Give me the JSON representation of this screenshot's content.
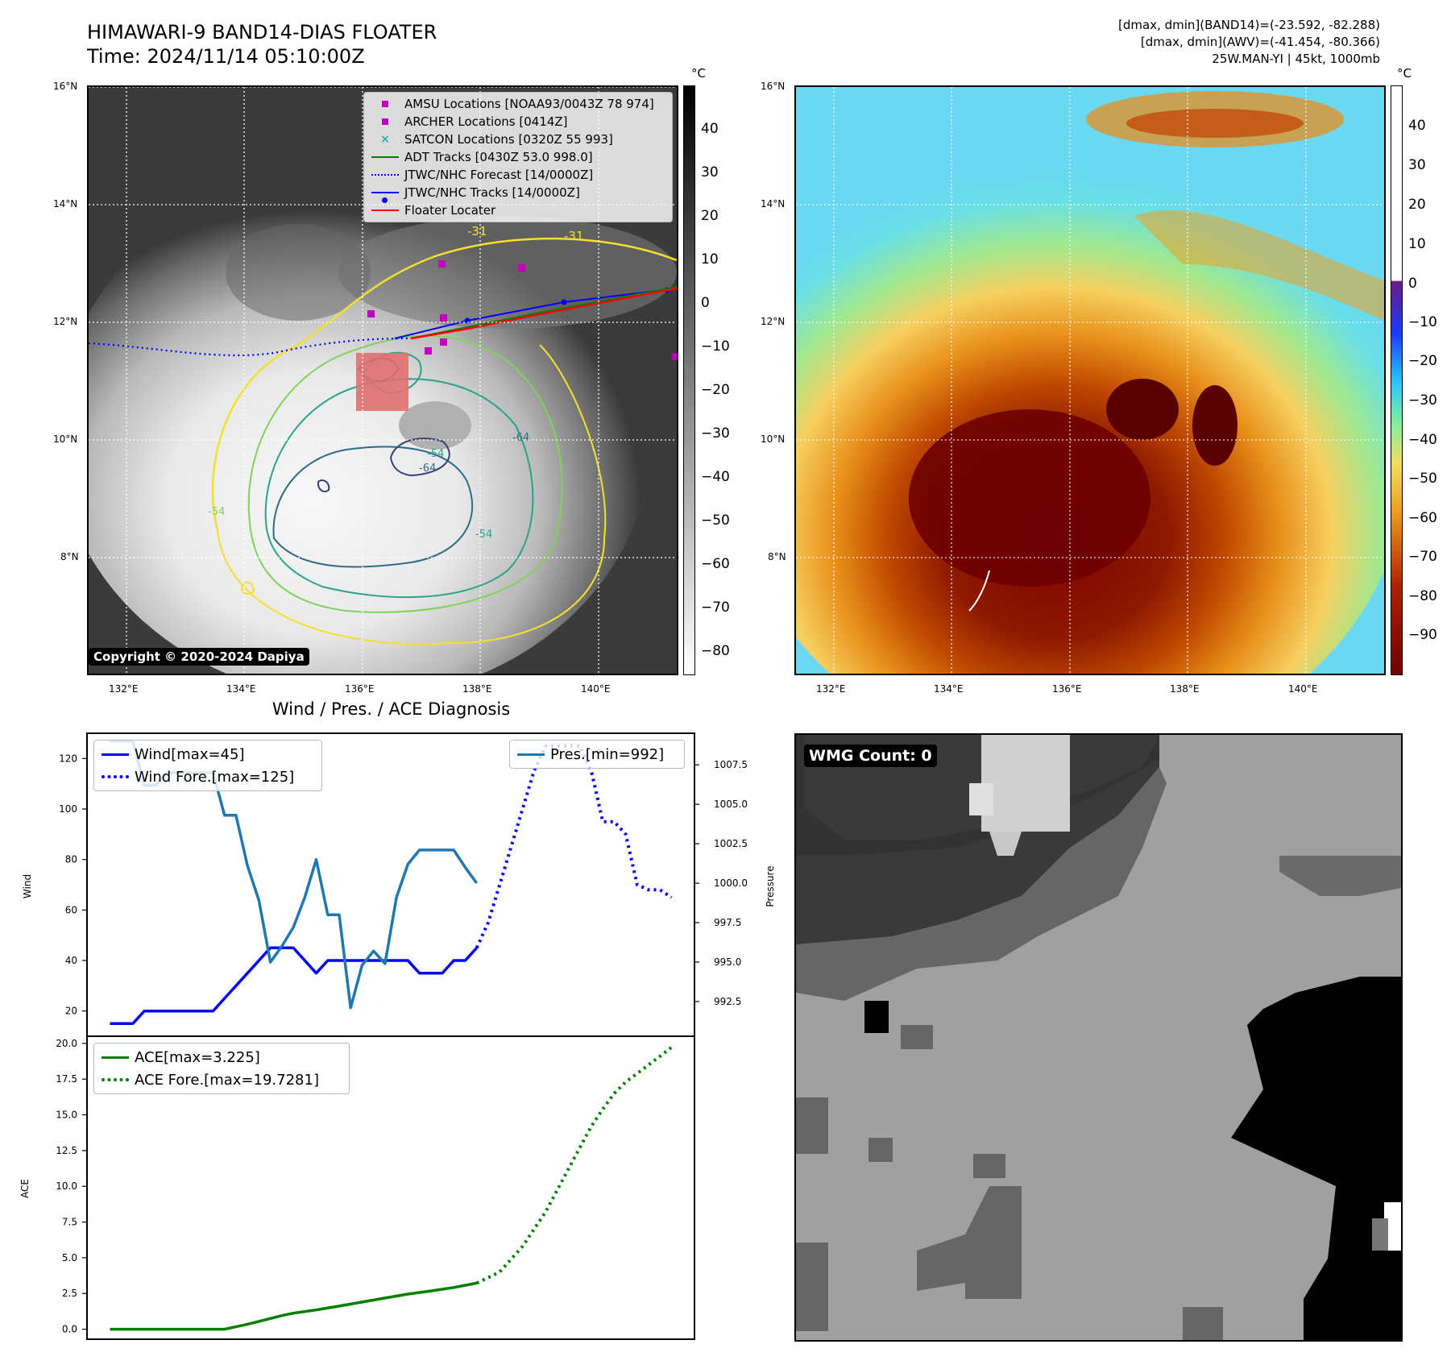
{
  "header": {
    "title_line1": "HIMAWARI-9 BAND14-DIAS FLOATER",
    "title_line2": "Time: 2024/11/14 05:10:00Z",
    "info_line1": "[dmax, dmin](BAND14)=(-23.592, -82.288)",
    "info_line2": "[dmax, dmin](AWV)=(-41.454, -80.366)",
    "info_line3": "25W.MAN-YI | 45kt, 1000mb"
  },
  "map_axes": {
    "lat_labels": [
      "16°N",
      "14°N",
      "12°N",
      "10°N",
      "8°N"
    ],
    "lon_labels": [
      "132°E",
      "134°E",
      "136°E",
      "138°E",
      "140°E"
    ]
  },
  "ir_panel": {
    "copyright": "Copyright © 2020-2024 Dapiya",
    "legend": [
      {
        "label": "AMSU Locations [NOAA93/0043Z 78 974]",
        "symbol": "square",
        "color": "#c000c0"
      },
      {
        "label": "ARCHER Locations [0414Z]",
        "symbol": "square",
        "color": "#c000c0"
      },
      {
        "label": "SATCON Locations [0320Z 55 993]",
        "symbol": "x",
        "color": "#20b0b0"
      },
      {
        "label": "ADT Tracks [0430Z 53.0 998.0]",
        "symbol": "line",
        "color": "#008000"
      },
      {
        "label": "JTWC/NHC Forecast [14/0000Z]",
        "symbol": "dotted",
        "color": "#0000ff"
      },
      {
        "label": "JTWC/NHC Tracks [14/0000Z]",
        "symbol": "line-dot",
        "color": "#0000ff"
      },
      {
        "label": "Floater Locater",
        "symbol": "line",
        "color": "#ff0000"
      }
    ],
    "contour_labels": [
      "-31",
      "-31",
      "-54",
      "-54",
      "-54",
      "-64",
      "-64"
    ],
    "colorbar": {
      "unit": "°C",
      "ticks": [
        "40",
        "30",
        "20",
        "10",
        "0",
        "−10",
        "−20",
        "−30",
        "−40",
        "−50",
        "−60",
        "−70",
        "−80"
      ]
    }
  },
  "awv_panel": {
    "colorbar": {
      "unit": "°C",
      "ticks": [
        "40",
        "30",
        "20",
        "10",
        "0",
        "−10",
        "−20",
        "−30",
        "−40",
        "−50",
        "−60",
        "−70",
        "−80",
        "−90"
      ]
    }
  },
  "wmg_panel": {
    "badge": "WMG Count: 0"
  },
  "chart_data": [
    {
      "type": "line",
      "title": "Wind / Pres. / ACE Diagnosis",
      "ylabel": "Wind",
      "y2label": "Pressure",
      "ylim": [
        10,
        130
      ],
      "yticks": [
        "120",
        "100",
        "80",
        "60",
        "40",
        "20"
      ],
      "y2lim": [
        990.3,
        1009.5
      ],
      "y2ticks": [
        "1007.5",
        "1005.0",
        "1002.5",
        "1000.0",
        "997.5",
        "995.0",
        "992.5"
      ],
      "x": [
        0,
        1,
        2,
        3,
        4,
        5,
        6,
        7,
        8,
        9,
        10,
        11,
        12,
        13,
        14,
        15,
        16,
        17,
        18,
        19,
        20,
        21,
        22,
        23,
        24,
        25,
        26,
        27,
        28,
        29,
        30,
        31,
        32,
        33,
        34,
        35,
        36,
        37,
        38,
        39,
        40,
        41,
        42,
        43,
        44,
        45,
        46,
        47,
        48,
        49
      ],
      "xlim": [
        -2,
        51
      ],
      "series": [
        {
          "name": "Wind[max=45]",
          "style": "solid",
          "color": "#0000ff",
          "x": [
            0,
            2,
            3,
            4,
            5,
            6,
            7,
            8,
            9,
            10,
            12,
            14,
            15,
            16,
            17,
            18,
            19,
            20,
            21,
            22,
            23,
            24,
            25,
            26,
            27,
            28,
            29,
            30,
            31,
            32
          ],
          "values": [
            15,
            15,
            20,
            20,
            20,
            20,
            20,
            20,
            20,
            25,
            35,
            45,
            45,
            45,
            40,
            35,
            40,
            40,
            40,
            40,
            40,
            40,
            40,
            40,
            35,
            35,
            35,
            40,
            40,
            45
          ]
        },
        {
          "name": "Wind Fore.[max=125]",
          "style": "dotted",
          "color": "#0000ff",
          "x": [
            32,
            33,
            34,
            35,
            36,
            37,
            38,
            39,
            40,
            41,
            42,
            43,
            44,
            45,
            46,
            47,
            48,
            49
          ],
          "values": [
            45,
            55,
            70,
            85,
            100,
            115,
            125,
            125,
            125,
            125,
            115,
            95,
            95,
            90,
            70,
            68,
            68,
            65
          ]
        },
        {
          "name": "Pres.[min=992]",
          "style": "solid",
          "color": "#1f77b4",
          "axis": "right",
          "x": [
            0,
            2,
            3,
            4,
            5,
            6,
            7,
            8,
            9,
            10,
            11,
            12,
            13,
            14,
            15,
            16,
            17,
            18,
            19,
            20,
            21,
            22,
            23,
            24,
            25,
            26,
            27,
            28,
            29,
            30,
            31,
            32
          ],
          "values": [
            1009.0,
            1009.0,
            1006.2,
            1006.2,
            1007.0,
            1007.0,
            1007.0,
            1007.0,
            1007.0,
            1004.3,
            1004.3,
            1001.1,
            998.9,
            995.0,
            996.0,
            997.2,
            999.1,
            1001.5,
            998.0,
            998.0,
            992.1,
            994.8,
            995.7,
            994.9,
            999.1,
            1001.2,
            1002.1,
            1002.1,
            1002.1,
            1002.1,
            1001.0,
            1000.0
          ]
        }
      ]
    },
    {
      "type": "line",
      "ylabel": "ACE",
      "ylim": [
        -0.7,
        20.5
      ],
      "yticks": [
        "20.0",
        "17.5",
        "15.0",
        "12.5",
        "10.0",
        "7.5",
        "5.0",
        "2.5",
        "0.0"
      ],
      "xlim": [
        -2,
        51
      ],
      "series": [
        {
          "name": "ACE[max=3.225]",
          "style": "solid",
          "color": "#008000",
          "x": [
            0,
            4,
            8,
            10,
            12,
            14,
            15,
            16,
            18,
            20,
            22,
            24,
            26,
            28,
            30,
            32
          ],
          "values": [
            0.0,
            0.0,
            0.0,
            0.0,
            0.35,
            0.75,
            0.95,
            1.12,
            1.35,
            1.62,
            1.9,
            2.18,
            2.46,
            2.68,
            2.92,
            3.225
          ]
        },
        {
          "name": "ACE Fore.[max=19.7281]",
          "style": "dotted",
          "color": "#008000",
          "x": [
            32,
            34,
            36,
            38,
            40,
            41,
            42,
            43,
            44,
            45,
            46,
            47,
            48,
            49
          ],
          "values": [
            3.225,
            4.0,
            5.8,
            8.2,
            11.2,
            12.7,
            14.2,
            15.4,
            16.5,
            17.3,
            17.9,
            18.5,
            19.1,
            19.73
          ]
        }
      ]
    }
  ]
}
